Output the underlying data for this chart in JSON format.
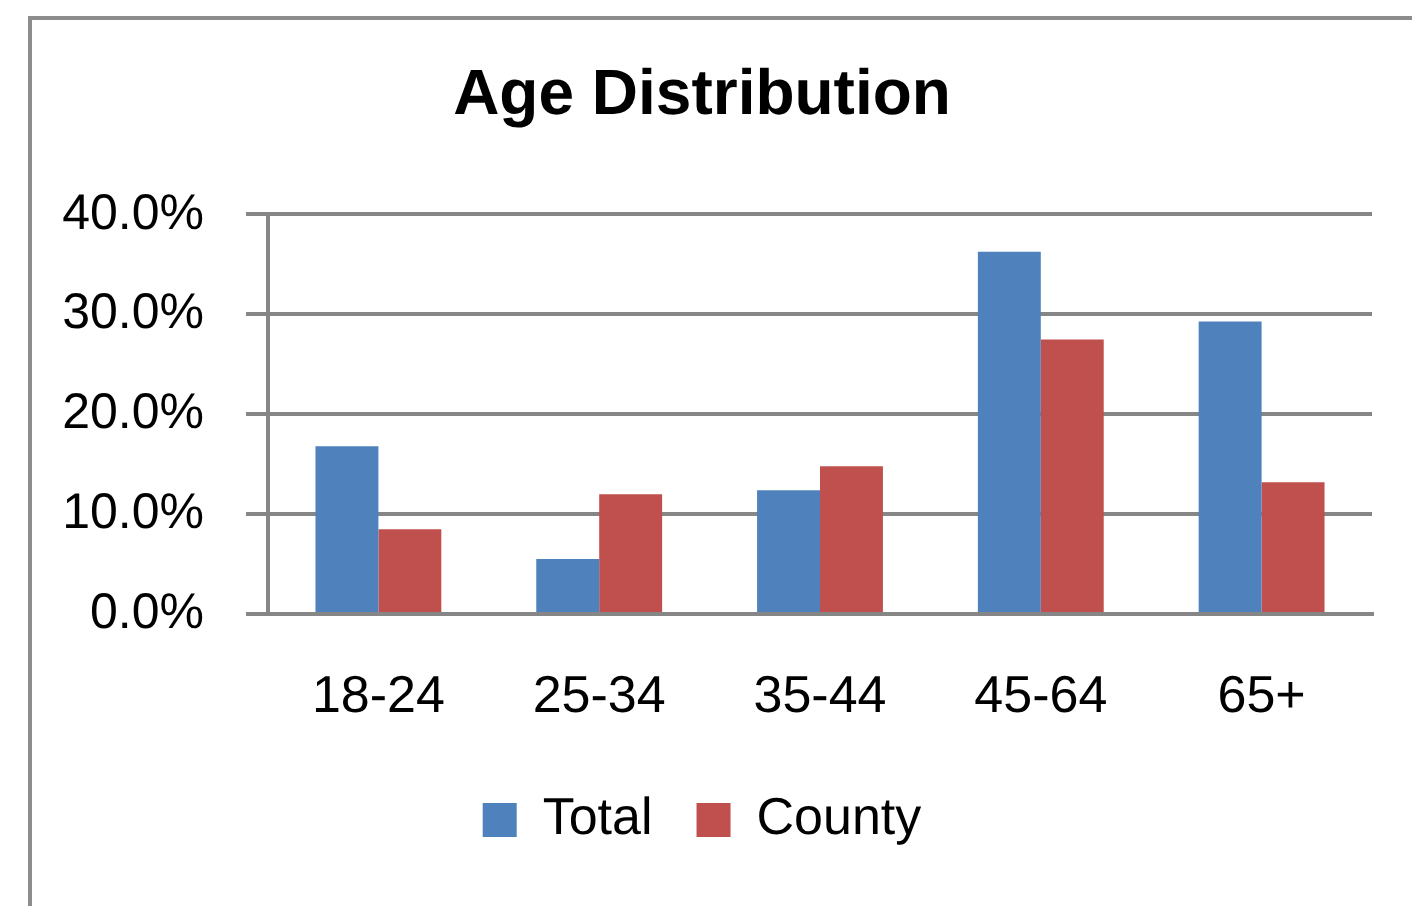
{
  "chart_data": {
    "type": "bar",
    "title": "Age Distribution",
    "categories": [
      "18-24",
      "25-34",
      "35-44",
      "45-64",
      "65+"
    ],
    "series": [
      {
        "name": "Total",
        "color": "#4f81bd",
        "values": [
          16.8,
          5.5,
          12.4,
          36.3,
          29.3
        ]
      },
      {
        "name": "County",
        "color": "#c0504d",
        "values": [
          8.5,
          12.0,
          14.8,
          27.5,
          13.2
        ]
      }
    ],
    "ylim": [
      0,
      40
    ],
    "yticks": [
      {
        "value": 0,
        "label": "0.0%"
      },
      {
        "value": 10,
        "label": "10.0%"
      },
      {
        "value": 20,
        "label": "20.0%"
      },
      {
        "value": 30,
        "label": "30.0%"
      },
      {
        "value": 40,
        "label": "40.0%"
      }
    ],
    "grid": "y",
    "legend": "bottom"
  }
}
